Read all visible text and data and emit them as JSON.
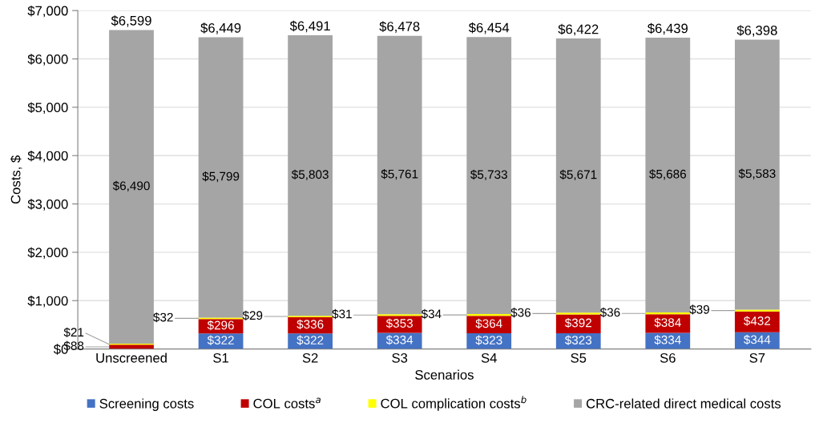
{
  "chart_data": {
    "type": "bar",
    "stacked": true,
    "xlabel": "Scenarios",
    "ylabel": "Costs, $",
    "categories": [
      "Unscreened",
      "S1",
      "S2",
      "S3",
      "S4",
      "S5",
      "S6",
      "S7"
    ],
    "series": [
      {
        "name": "Screening costs",
        "color": "#4472c4",
        "values": [
          0,
          322,
          322,
          334,
          323,
          323,
          334,
          344
        ],
        "value_labels": [
          null,
          "$322",
          "$322",
          "$334",
          "$323",
          "$323",
          "$334",
          "$344"
        ]
      },
      {
        "name": "COL costs$^{a}$",
        "color": "#c00000",
        "values": [
          88,
          296,
          336,
          353,
          364,
          392,
          384,
          432
        ],
        "value_labels": [
          "$88",
          "$296",
          "$336",
          "$353",
          "$364",
          "$392",
          "$384",
          "$432"
        ]
      },
      {
        "name": "COL complication costs$^{b}$",
        "color": "#ffff00",
        "values": [
          21,
          32,
          29,
          31,
          34,
          36,
          36,
          39
        ],
        "value_labels": [
          "$21",
          "$32",
          "$29",
          "$31",
          "$34",
          "$36",
          "$36",
          "$39"
        ]
      },
      {
        "name": "CRC-related direct medical costs",
        "color": "#a5a5a5",
        "values": [
          6490,
          5799,
          5803,
          5761,
          5733,
          5671,
          5686,
          5583
        ],
        "value_labels": [
          "$6,490",
          "$5,799",
          "$5,803",
          "$5,761",
          "$5,733",
          "$5,671",
          "$5,686",
          "$5,583"
        ]
      }
    ],
    "totals": [
      "$6,599",
      "$6,449",
      "$6,491",
      "$6,478",
      "$6,454",
      "$6,422",
      "$6,439",
      "$6,398"
    ],
    "ylim": [
      0,
      7000
    ],
    "yticks": [
      {
        "value": 0,
        "label": "$0"
      },
      {
        "value": 1000,
        "label": "$1,000"
      },
      {
        "value": 2000,
        "label": "$2,000"
      },
      {
        "value": 3000,
        "label": "$3,000"
      },
      {
        "value": 4000,
        "label": "$4,000"
      },
      {
        "value": 5000,
        "label": "$5,000"
      },
      {
        "value": 6000,
        "label": "$6,000"
      },
      {
        "value": 7000,
        "label": "$7,000"
      }
    ],
    "grid": "y",
    "legend": "bottom"
  }
}
